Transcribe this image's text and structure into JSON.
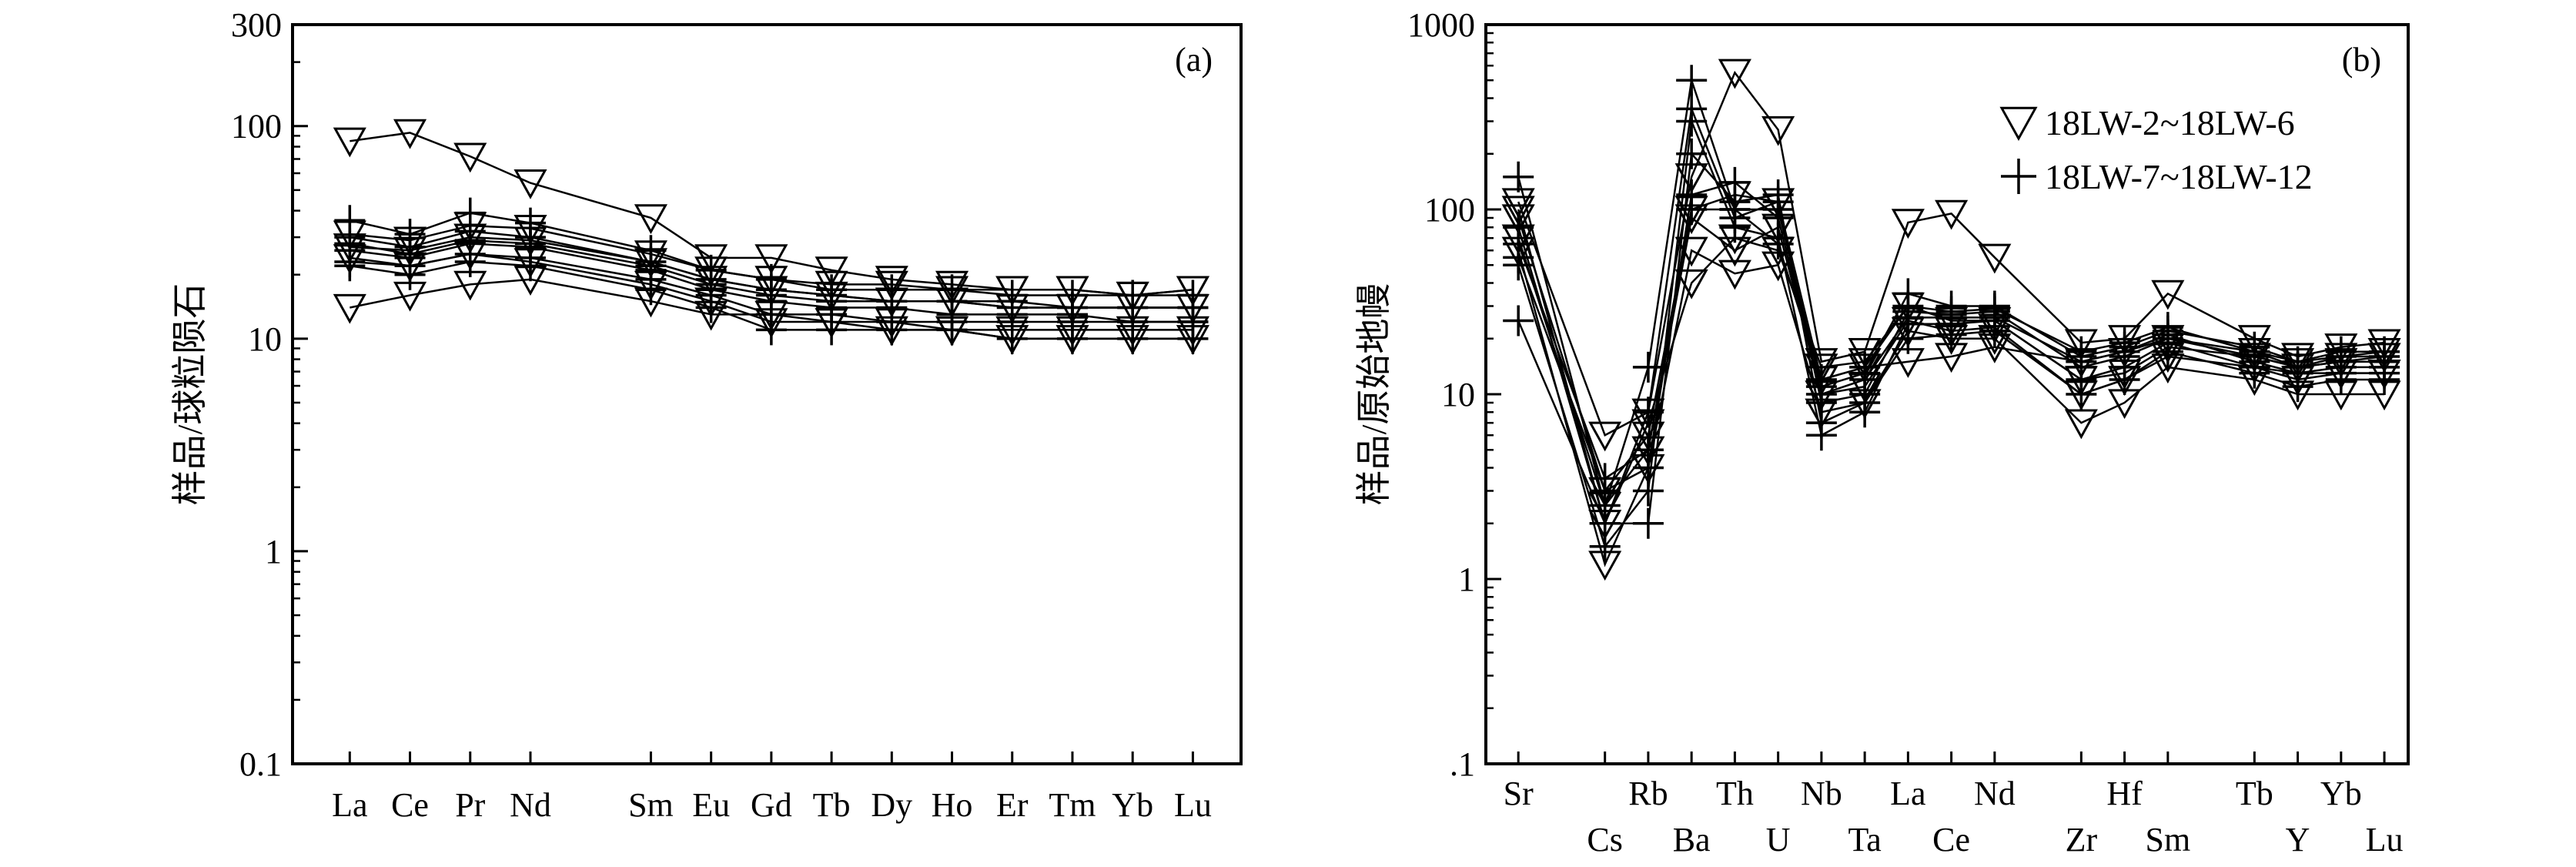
{
  "chart_data": [
    {
      "type": "line",
      "panel_label": "(a)",
      "ylabel": "样品/球粒陨石",
      "yscale": "log",
      "ylim": [
        0.1,
        300
      ],
      "yticks": [
        "0.1",
        "1",
        "10",
        "100",
        "300"
      ],
      "categories": [
        "La",
        "Ce",
        "Pr",
        "Nd",
        "Sm",
        "Eu",
        "Gd",
        "Tb",
        "Dy",
        "Ho",
        "Er",
        "Tm",
        "Yb",
        "Lu"
      ],
      "x": [
        1,
        2,
        3,
        4,
        6,
        7,
        8,
        9,
        10,
        11,
        12,
        13,
        14,
        15
      ],
      "series": [
        {
          "marker": "triangle",
          "values": [
            85,
            93,
            72,
            54,
            37,
            24,
            24,
            21,
            19,
            18,
            17,
            17,
            16,
            17
          ]
        },
        {
          "marker": "triangle",
          "values": [
            14,
            16,
            18,
            19,
            15,
            13,
            13,
            12,
            12,
            11,
            11,
            11,
            11,
            11
          ]
        },
        {
          "marker": "triangle",
          "values": [
            27,
            26,
            30,
            29,
            23,
            19,
            17,
            16,
            15,
            15,
            14,
            14,
            14,
            14
          ]
        },
        {
          "marker": "triangle",
          "values": [
            31,
            29,
            34,
            33,
            25,
            21,
            19,
            18,
            18,
            17,
            17,
            17,
            16,
            17
          ]
        },
        {
          "marker": "triangle",
          "values": [
            24,
            22,
            25,
            23,
            18,
            15,
            12,
            12,
            11,
            11,
            10,
            10,
            10,
            10
          ]
        },
        {
          "marker": "plus",
          "values": [
            36,
            31,
            39,
            35,
            26,
            21,
            19,
            17,
            17,
            17,
            16,
            16,
            16,
            16
          ]
        },
        {
          "marker": "plus",
          "values": [
            30,
            27,
            32,
            30,
            23,
            19,
            17,
            16,
            15,
            15,
            15,
            14,
            14,
            14
          ]
        },
        {
          "marker": "plus",
          "values": [
            26,
            24,
            28,
            27,
            21,
            17,
            15,
            14,
            14,
            13,
            13,
            13,
            12,
            12
          ]
        },
        {
          "marker": "plus",
          "values": [
            23,
            22,
            25,
            24,
            19,
            16,
            13,
            13,
            12,
            12,
            12,
            12,
            12,
            12
          ]
        },
        {
          "marker": "plus",
          "values": [
            22,
            20,
            23,
            22,
            17,
            14,
            11,
            11,
            11,
            11,
            10,
            10,
            10,
            10
          ]
        },
        {
          "marker": "plus",
          "values": [
            28,
            25,
            29,
            28,
            22,
            18,
            16,
            15,
            15,
            15,
            14,
            14,
            14,
            14
          ]
        }
      ]
    },
    {
      "type": "line",
      "panel_label": "(b)",
      "ylabel": "样品/原始地幔",
      "yscale": "log",
      "ylim": [
        0.1,
        1000
      ],
      "yticks": [
        ".1",
        "1",
        "10",
        "100",
        "1000"
      ],
      "categories": [
        "Sr",
        "Cs",
        "Rb",
        "Ba",
        "Th",
        "U",
        "Nb",
        "Ta",
        "La",
        "Ce",
        "Nd",
        "Zr",
        "Hf",
        "Sm",
        "Tb",
        "Y",
        "Yb",
        "Lu"
      ],
      "x": [
        1,
        3,
        4,
        5,
        6,
        7,
        8,
        9,
        10,
        11,
        12,
        14,
        15,
        16,
        18,
        19,
        20,
        21
      ],
      "legend": [
        {
          "marker": "triangle",
          "label": "18LW-2~18LW-6"
        },
        {
          "marker": "plus",
          "label": "18LW-7~18LW-12"
        }
      ],
      "legend_position": "top-right",
      "series": [
        {
          "marker": "triangle",
          "values": [
            110,
            6,
            8,
            150,
            550,
            270,
            15,
            17,
            85,
            95,
            55,
            19,
            20,
            35,
            20,
            16,
            18,
            19
          ]
        },
        {
          "marker": "triangle",
          "values": [
            90,
            3,
            6,
            100,
            120,
            110,
            12,
            14,
            15,
            16,
            18,
            15,
            17,
            20,
            17,
            15,
            16,
            17
          ]
        },
        {
          "marker": "triangle",
          "values": [
            70,
            2.5,
            5,
            90,
            60,
            80,
            10,
            11,
            25,
            22,
            23,
            10,
            12,
            16,
            14,
            12,
            13,
            13
          ]
        },
        {
          "marker": "triangle",
          "values": [
            60,
            1.2,
            4,
            60,
            45,
            50,
            8,
            9,
            22,
            20,
            20,
            7,
            9,
            14,
            12,
            10,
            10,
            10
          ]
        },
        {
          "marker": "triangle",
          "values": [
            100,
            2,
            7,
            40,
            70,
            60,
            14,
            15,
            30,
            25,
            25,
            12,
            13,
            18,
            16,
            14,
            15,
            16
          ]
        },
        {
          "marker": "plus",
          "values": [
            150,
            2.5,
            14,
            500,
            100,
            100,
            11,
            13,
            35,
            30,
            30,
            16,
            18,
            22,
            18,
            15,
            17,
            17
          ]
        },
        {
          "marker": "plus",
          "values": [
            80,
            2,
            8,
            350,
            90,
            110,
            9,
            10,
            28,
            27,
            28,
            14,
            16,
            20,
            16,
            14,
            16,
            16
          ]
        },
        {
          "marker": "plus",
          "values": [
            50,
            1.5,
            3,
            300,
            80,
            70,
            6,
            8,
            24,
            24,
            25,
            12,
            14,
            19,
            14,
            13,
            14,
            14
          ]
        },
        {
          "marker": "plus",
          "values": [
            25,
            2,
            2,
            200,
            110,
            120,
            7,
            9,
            20,
            21,
            22,
            10,
            12,
            17,
            13,
            11,
            12,
            12
          ]
        },
        {
          "marker": "plus",
          "values": [
            55,
            3,
            4,
            120,
            140,
            90,
            10,
            12,
            26,
            26,
            26,
            15,
            17,
            21,
            15,
            13,
            13,
            13
          ]
        },
        {
          "marker": "plus",
          "values": [
            65,
            3.5,
            5,
            100,
            100,
            65,
            12,
            14,
            30,
            28,
            29,
            17,
            19,
            23,
            17,
            14,
            15,
            15
          ]
        }
      ]
    }
  ]
}
